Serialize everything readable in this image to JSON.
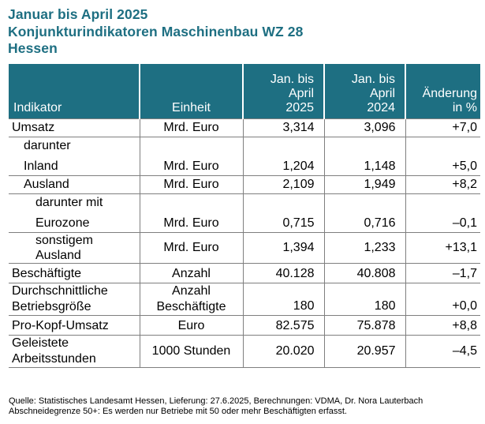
{
  "title": {
    "line1": "Januar bis April 2025",
    "line2": "Konjunkturindikatoren Maschinenbau WZ 28",
    "line3": "Hessen"
  },
  "table": {
    "headers": {
      "indikator": "Indikator",
      "einheit": "Einheit",
      "col2025": [
        "Jan. bis",
        "April",
        "2025"
      ],
      "col2024": [
        "Jan. bis",
        "April",
        "2024"
      ],
      "change": [
        "Änderung",
        "in %"
      ]
    },
    "rows": [
      {
        "indikator": [
          "Umsatz"
        ],
        "einheit": [
          "Mrd. Euro"
        ],
        "v2025": "3,314",
        "v2024": "3,096",
        "change": "+7,0"
      },
      {
        "indikator": [
          "darunter",
          "Inland"
        ],
        "einheit": [
          "Mrd. Euro"
        ],
        "v2025": "1,204",
        "v2024": "1,148",
        "change": "+5,0"
      },
      {
        "indikator": [
          "Ausland"
        ],
        "einheit": [
          "Mrd. Euro"
        ],
        "v2025": "2,109",
        "v2024": "1,949",
        "change": "+8,2"
      },
      {
        "indikator": [
          "darunter mit",
          "Eurozone"
        ],
        "einheit": [
          "Mrd. Euro"
        ],
        "v2025": "0,715",
        "v2024": "0,716",
        "change": "–0,1"
      },
      {
        "indikator": [
          "sonstigem",
          "Ausland"
        ],
        "einheit": [
          "Mrd. Euro"
        ],
        "v2025": "1,394",
        "v2024": "1,233",
        "change": "+13,1"
      },
      {
        "indikator": [
          "Beschäftigte"
        ],
        "einheit": [
          "Anzahl"
        ],
        "v2025": "40.128",
        "v2024": "40.808",
        "change": "–1,7"
      },
      {
        "indikator": [
          "Durchschnittliche",
          "Betriebsgröße"
        ],
        "einheit": [
          "Anzahl",
          "Beschäftigte"
        ],
        "v2025": "180",
        "v2024": "180",
        "change": "+0,0"
      },
      {
        "indikator": [
          "Pro-Kopf-Umsatz"
        ],
        "einheit": [
          "Euro"
        ],
        "v2025": "82.575",
        "v2024": "75.878",
        "change": "+8,8"
      },
      {
        "indikator": [
          "Geleistete",
          "Arbeitsstunden"
        ],
        "einheit": [
          "1000 Stunden"
        ],
        "v2025": "20.020",
        "v2024": "20.957",
        "change": "–4,5"
      }
    ]
  },
  "notes": {
    "line1": "Quelle: Statistisches Landesamt Hessen, Lieferung: 27.6.2025, Berechnungen: VDMA, Dr. Nora Lauterbach",
    "line2": "Abschneidegrenze 50+: Es werden nur Betriebe mit 50 oder mehr Beschäftigten erfasst."
  }
}
